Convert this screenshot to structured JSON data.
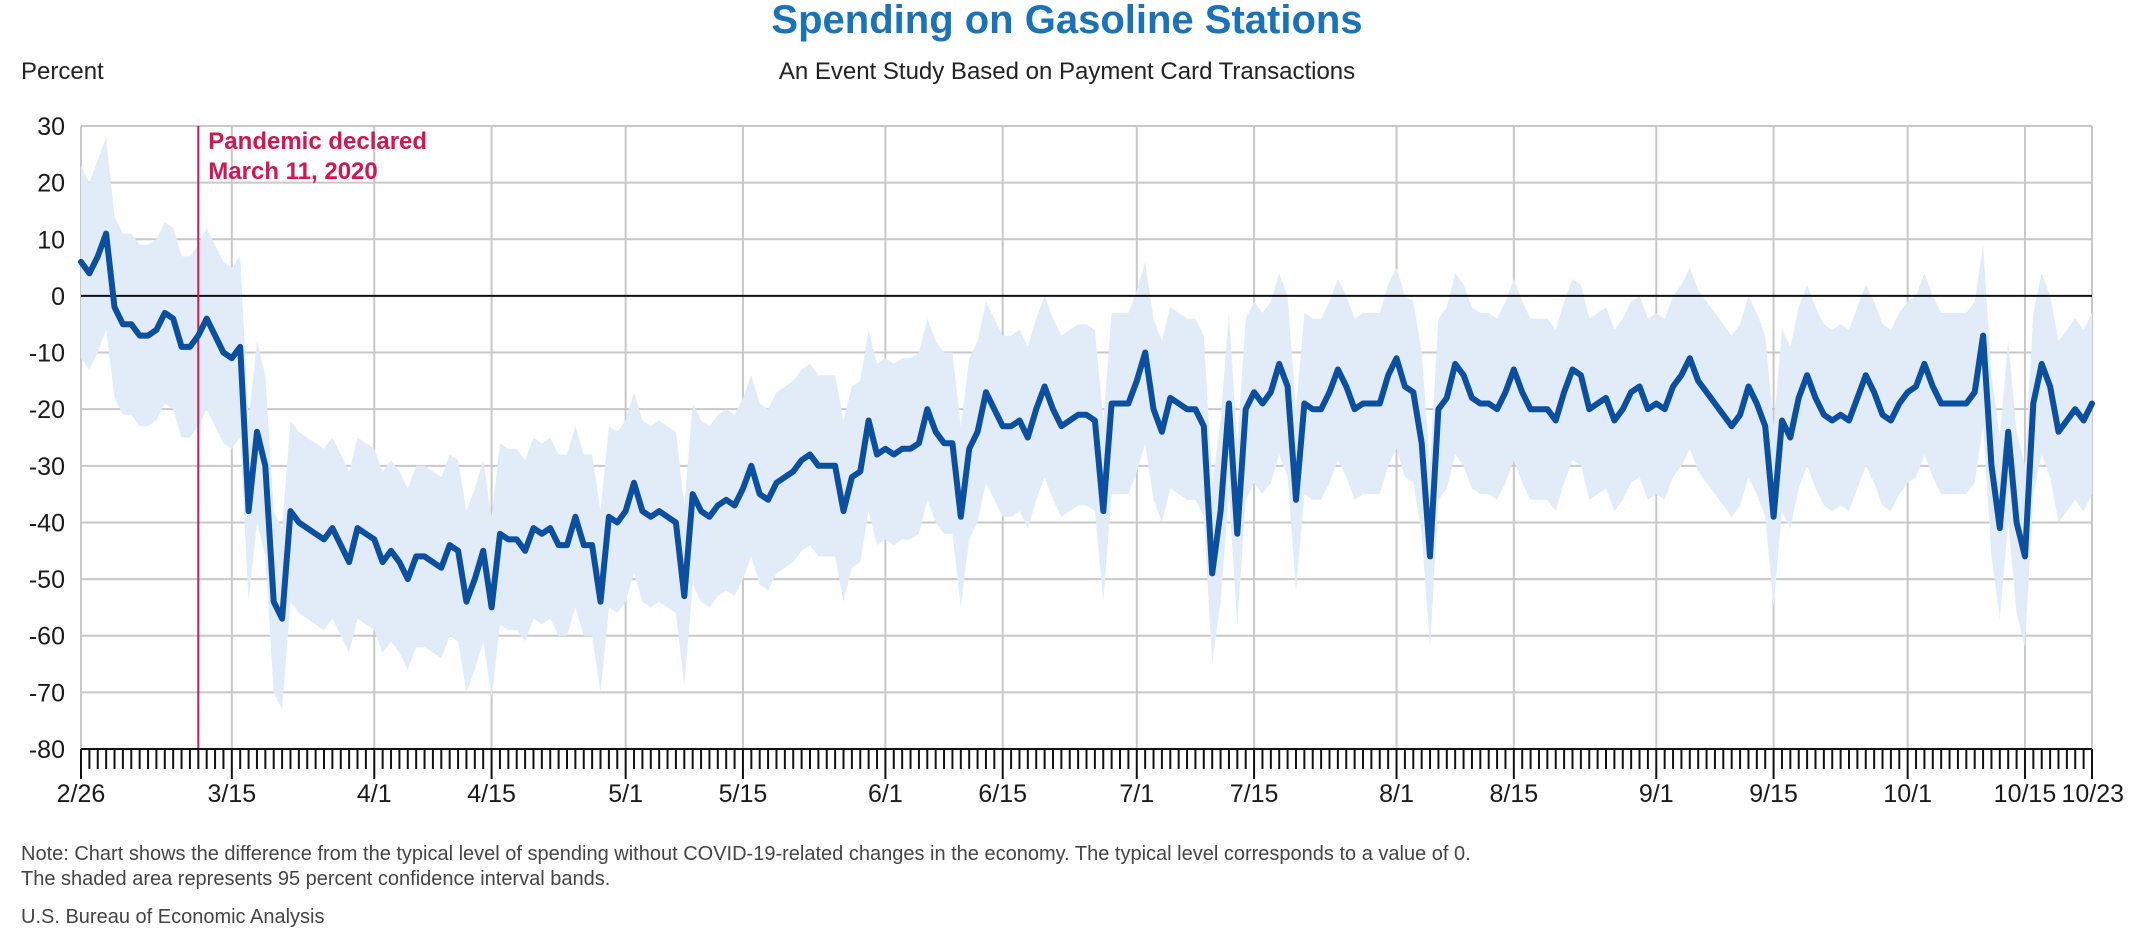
{
  "chart_data": {
    "type": "line",
    "title": "Spending on Gasoline Stations",
    "subtitle": "An Event Study Based on Payment Card Transactions",
    "ylabel": "Percent",
    "xlabel": "",
    "ylim": [
      -80,
      30
    ],
    "yticks": [
      30,
      20,
      10,
      0,
      -10,
      -20,
      -30,
      -40,
      -50,
      -60,
      -70,
      -80
    ],
    "x_start_date": "2020-02-26",
    "x_end_date": "2020-10-23",
    "xtick_labels": [
      {
        "date": "2020-02-26",
        "label": "2/26"
      },
      {
        "date": "2020-03-15",
        "label": "3/15"
      },
      {
        "date": "2020-04-01",
        "label": "4/1"
      },
      {
        "date": "2020-04-15",
        "label": "4/15"
      },
      {
        "date": "2020-05-01",
        "label": "5/1"
      },
      {
        "date": "2020-05-15",
        "label": "5/15"
      },
      {
        "date": "2020-06-01",
        "label": "6/1"
      },
      {
        "date": "2020-06-15",
        "label": "6/15"
      },
      {
        "date": "2020-07-01",
        "label": "7/1"
      },
      {
        "date": "2020-07-15",
        "label": "7/15"
      },
      {
        "date": "2020-08-01",
        "label": "8/1"
      },
      {
        "date": "2020-08-15",
        "label": "8/15"
      },
      {
        "date": "2020-09-01",
        "label": "9/1"
      },
      {
        "date": "2020-09-15",
        "label": "9/15"
      },
      {
        "date": "2020-10-01",
        "label": "10/1"
      },
      {
        "date": "2020-10-15",
        "label": "10/15"
      },
      {
        "date": "2020-10-23",
        "label": "10/23"
      }
    ],
    "grid": true,
    "colors": {
      "line": "#0b4fa0",
      "band": "#e2ecf8",
      "event": "#d0174f",
      "grid": "#c8c8c8",
      "zero": "#111111"
    },
    "annotation": {
      "date": "2020-03-11",
      "text_lines": [
        "Pandemic declared",
        "March 11, 2020"
      ]
    },
    "series": [
      {
        "values": [
          6,
          4,
          7,
          11,
          -2,
          -5,
          -5,
          -7,
          -7,
          -6,
          -3,
          -4,
          -9,
          -9,
          -7,
          -4,
          -7,
          -10,
          -11,
          -9,
          -38,
          -24,
          -30,
          -54,
          -57,
          -38,
          -40,
          -41,
          -42,
          -43,
          -41,
          -44,
          -47,
          -41,
          -42,
          -43,
          -47,
          -45,
          -47,
          -50,
          -46,
          -46,
          -47,
          -48,
          -44,
          -45,
          -54,
          -50,
          -45,
          -55,
          -42,
          -43,
          -43,
          -45,
          -41,
          -42,
          -41,
          -44,
          -44,
          -39,
          -44,
          -44,
          -54,
          -39,
          -40,
          -38,
          -33,
          -38,
          -39,
          -38,
          -39,
          -40,
          -53,
          -35,
          -38,
          -39,
          -37,
          -36,
          -37,
          -34,
          -30,
          -35,
          -36,
          -33,
          -32,
          -31,
          -29,
          -28,
          -30,
          -30,
          -30,
          -38,
          -32,
          -31,
          -22,
          -28,
          -27,
          -28,
          -27,
          -27,
          -26,
          -20,
          -24,
          -26,
          -26,
          -39,
          -27,
          -24,
          -17,
          -20,
          -23,
          -23,
          -22,
          -25,
          -20,
          -16,
          -20,
          -23,
          -22,
          -21,
          -21,
          -22,
          -38,
          -19,
          -19,
          -19,
          -15,
          -10,
          -20,
          -24,
          -18,
          -19,
          -20,
          -20,
          -23,
          -49,
          -38,
          -19,
          -42,
          -20,
          -17,
          -19,
          -17,
          -12,
          -16,
          -36,
          -19,
          -20,
          -20,
          -17,
          -13,
          -16,
          -20,
          -19,
          -19,
          -19,
          -14,
          -11,
          -16,
          -17,
          -26,
          -46,
          -20,
          -18,
          -12,
          -14,
          -18,
          -19,
          -19,
          -20,
          -17,
          -13,
          -17,
          -20,
          -20,
          -20,
          -22,
          -17,
          -13,
          -14,
          -20,
          -19,
          -18,
          -22,
          -20,
          -17,
          -16,
          -20,
          -19,
          -20,
          -16,
          -14,
          -11,
          -15,
          -17,
          -19,
          -21,
          -23,
          -21,
          -16,
          -19,
          -23,
          -39,
          -22,
          -25,
          -18,
          -14,
          -18,
          -21,
          -22,
          -21,
          -22,
          -18,
          -14,
          -17,
          -21,
          -22,
          -19,
          -17,
          -16,
          -12,
          -16,
          -19,
          -19,
          -19,
          -19,
          -17,
          -7,
          -30,
          -41,
          -24,
          -40,
          -46,
          -19,
          -12,
          -16,
          -24,
          -22,
          -20,
          -22,
          -19
        ],
        "upper": [
          23,
          20,
          24,
          28,
          14,
          11,
          11,
          9,
          9,
          10,
          13,
          12,
          7,
          7,
          9,
          12,
          9,
          6,
          5,
          7,
          -22,
          -8,
          -14,
          -38,
          -41,
          -22,
          -24,
          -25,
          -26,
          -27,
          -25,
          -28,
          -31,
          -25,
          -26,
          -27,
          -31,
          -29,
          -31,
          -34,
          -30,
          -30,
          -31,
          -32,
          -28,
          -29,
          -38,
          -34,
          -29,
          -39,
          -26,
          -27,
          -27,
          -29,
          -25,
          -26,
          -25,
          -28,
          -28,
          -23,
          -28,
          -28,
          -38,
          -23,
          -24,
          -22,
          -17,
          -22,
          -23,
          -22,
          -23,
          -24,
          -37,
          -19,
          -22,
          -23,
          -21,
          -20,
          -21,
          -18,
          -14,
          -19,
          -20,
          -17,
          -16,
          -15,
          -13,
          -12,
          -14,
          -14,
          -14,
          -22,
          -16,
          -15,
          -6,
          -12,
          -11,
          -12,
          -11,
          -11,
          -10,
          -4,
          -8,
          -10,
          -10,
          -23,
          -11,
          -8,
          -1,
          -4,
          -7,
          -7,
          -6,
          -9,
          -4,
          0,
          -4,
          -7,
          -6,
          -5,
          -5,
          -6,
          -22,
          -3,
          -3,
          -3,
          1,
          6,
          -4,
          -8,
          -2,
          -3,
          -4,
          -4,
          -7,
          -33,
          -22,
          -3,
          -26,
          -4,
          -1,
          -3,
          -1,
          4,
          0,
          -20,
          -3,
          -4,
          -4,
          -1,
          3,
          0,
          -4,
          -3,
          -3,
          -3,
          2,
          5,
          0,
          -1,
          -10,
          -30,
          -4,
          -2,
          4,
          2,
          -2,
          -3,
          -3,
          -4,
          -1,
          3,
          -1,
          -4,
          -4,
          -4,
          -6,
          -1,
          3,
          2,
          -4,
          -3,
          -2,
          -6,
          -4,
          -1,
          0,
          -4,
          -3,
          -4,
          0,
          2,
          5,
          1,
          -1,
          -3,
          -5,
          -7,
          -5,
          0,
          -3,
          -7,
          -23,
          -6,
          -9,
          -2,
          2,
          -2,
          -5,
          -6,
          -5,
          -6,
          -2,
          2,
          -1,
          -5,
          -6,
          -3,
          -1,
          0,
          4,
          0,
          -3,
          -3,
          -3,
          -3,
          -1,
          9,
          -14,
          -25,
          -8,
          -24,
          -30,
          -3,
          4,
          0,
          -8,
          -6,
          -4,
          -6,
          -3
        ],
        "lower": [
          -11,
          -13,
          -10,
          -6,
          -18,
          -21,
          -21,
          -23,
          -23,
          -22,
          -19,
          -20,
          -25,
          -25,
          -23,
          -20,
          -23,
          -26,
          -27,
          -25,
          -54,
          -40,
          -46,
          -70,
          -73,
          -54,
          -56,
          -57,
          -58,
          -59,
          -57,
          -60,
          -63,
          -57,
          -58,
          -59,
          -63,
          -61,
          -63,
          -66,
          -62,
          -62,
          -63,
          -64,
          -60,
          -61,
          -70,
          -66,
          -61,
          -71,
          -58,
          -59,
          -59,
          -61,
          -57,
          -58,
          -57,
          -60,
          -60,
          -55,
          -60,
          -60,
          -70,
          -55,
          -56,
          -54,
          -49,
          -54,
          -55,
          -54,
          -55,
          -56,
          -69,
          -51,
          -54,
          -55,
          -53,
          -52,
          -53,
          -50,
          -46,
          -51,
          -52,
          -49,
          -48,
          -47,
          -45,
          -44,
          -46,
          -46,
          -46,
          -54,
          -48,
          -47,
          -38,
          -44,
          -43,
          -44,
          -43,
          -43,
          -42,
          -36,
          -40,
          -42,
          -42,
          -55,
          -43,
          -40,
          -33,
          -36,
          -39,
          -39,
          -38,
          -41,
          -36,
          -32,
          -36,
          -39,
          -38,
          -37,
          -37,
          -38,
          -54,
          -35,
          -35,
          -35,
          -31,
          -26,
          -36,
          -40,
          -34,
          -35,
          -36,
          -36,
          -39,
          -65,
          -54,
          -35,
          -58,
          -36,
          -33,
          -35,
          -33,
          -28,
          -32,
          -52,
          -35,
          -36,
          -36,
          -33,
          -29,
          -32,
          -36,
          -35,
          -35,
          -35,
          -30,
          -27,
          -32,
          -33,
          -42,
          -62,
          -36,
          -34,
          -28,
          -30,
          -34,
          -35,
          -35,
          -36,
          -33,
          -29,
          -33,
          -36,
          -36,
          -36,
          -38,
          -33,
          -29,
          -30,
          -36,
          -35,
          -34,
          -38,
          -36,
          -33,
          -32,
          -36,
          -35,
          -36,
          -32,
          -30,
          -27,
          -31,
          -33,
          -35,
          -37,
          -39,
          -37,
          -32,
          -35,
          -39,
          -55,
          -38,
          -41,
          -34,
          -30,
          -34,
          -37,
          -38,
          -37,
          -38,
          -34,
          -30,
          -33,
          -37,
          -38,
          -35,
          -33,
          -32,
          -28,
          -32,
          -35,
          -35,
          -35,
          -35,
          -33,
          -23,
          -46,
          -57,
          -40,
          -56,
          -62,
          -35,
          -28,
          -32,
          -40,
          -38,
          -36,
          -38,
          -35
        ]
      }
    ]
  },
  "note_lines": [
    "Note: Chart shows the difference from the typical level of spending without COVID-19-related changes in the economy. The typical level corresponds to a value of 0.",
    "The shaded area represents 95 percent confidence interval bands."
  ],
  "source": "U.S. Bureau of Economic Analysis"
}
